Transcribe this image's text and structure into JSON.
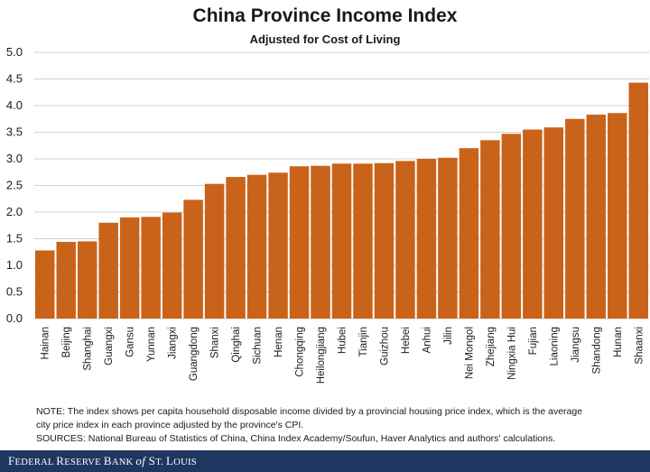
{
  "chart_data": {
    "type": "bar",
    "title": "China Province Income Index",
    "subtitle": "Adjusted for Cost of Living",
    "xlabel": "",
    "ylabel": "",
    "ylim": [
      0,
      5
    ],
    "yticks": [
      "0.0",
      "0.5",
      "1.0",
      "1.5",
      "2.0",
      "2.5",
      "3.0",
      "3.5",
      "4.0",
      "4.5",
      "5.0"
    ],
    "grid": true,
    "bar_color": "#c9631a",
    "categories": [
      "Hainan",
      "Beijing",
      "Shanghai",
      "Guangxi",
      "Gansu",
      "Yunnan",
      "Jiangxi",
      "Guangdong",
      "Shanxi",
      "Qinghai",
      "Sichuan",
      "Henan",
      "Chongqing",
      "Heilongjiang",
      "Hubei",
      "Tianjin",
      "Guizhou",
      "Hebei",
      "Anhui",
      "Jilin",
      "Nei Mongol",
      "Zhejiang",
      "Ningxia Hui",
      "Fujian",
      "Liaoning",
      "Jiangsu",
      "Shandong",
      "Hunan",
      "Shaanxi"
    ],
    "values": [
      1.28,
      1.44,
      1.45,
      1.8,
      1.9,
      1.91,
      1.99,
      2.23,
      2.53,
      2.66,
      2.7,
      2.74,
      2.86,
      2.87,
      2.91,
      2.91,
      2.92,
      2.96,
      3.0,
      3.02,
      3.2,
      3.35,
      3.47,
      3.55,
      3.59,
      3.75,
      3.83,
      3.86,
      4.43
    ]
  },
  "notes": {
    "note_line1": "NOTE: The index shows per capita household disposable income divided by a provincial housing price index, which is the average",
    "note_line2": "city price index in each province adjusted by the province's CPI.",
    "sources": "SOURCES: National Bureau of Statistics of China, China Index Academy/Soufun,  Haver Analytics and authors' calculations."
  },
  "footer": {
    "part1": "F",
    "part2": "EDERAL ",
    "part3": "R",
    "part4": "ESERVE ",
    "part5": "B",
    "part6": "ANK ",
    "part7": "of",
    "part8": " S",
    "part9": "T. ",
    "part10": "L",
    "part11": "OUIS"
  }
}
